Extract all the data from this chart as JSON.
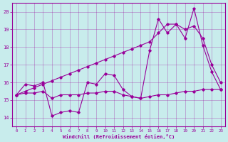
{
  "xlabel": "Windchill (Refroidissement éolien,°C)",
  "bg_color": "#c8ecec",
  "line_color": "#990099",
  "xlim": [
    -0.5,
    23.5
  ],
  "ylim": [
    13.5,
    20.5
  ],
  "xticks": [
    0,
    1,
    2,
    3,
    4,
    5,
    6,
    7,
    8,
    9,
    10,
    11,
    12,
    13,
    14,
    15,
    16,
    17,
    18,
    19,
    20,
    21,
    22,
    23
  ],
  "yticks": [
    14,
    15,
    16,
    17,
    18,
    19,
    20
  ],
  "series1_x": [
    0,
    1,
    2,
    3,
    4,
    5,
    6,
    7,
    8,
    9,
    10,
    11,
    12,
    13,
    14,
    15,
    16,
    17,
    18,
    19,
    20,
    21,
    22,
    23
  ],
  "series1_y": [
    15.3,
    15.5,
    15.7,
    15.9,
    16.1,
    16.3,
    16.5,
    16.7,
    16.9,
    17.1,
    17.3,
    17.5,
    17.7,
    17.9,
    18.1,
    18.3,
    18.8,
    19.3,
    19.3,
    19.0,
    19.2,
    18.5,
    17.0,
    16.0
  ],
  "series2_x": [
    0,
    1,
    2,
    3,
    4,
    5,
    6,
    7,
    8,
    9,
    10,
    11,
    12,
    13,
    14,
    15,
    16,
    17,
    18,
    19,
    20,
    21,
    22,
    23
  ],
  "series2_y": [
    15.3,
    15.9,
    15.8,
    16.0,
    14.1,
    14.3,
    14.4,
    14.3,
    16.0,
    15.9,
    16.5,
    16.4,
    15.6,
    15.2,
    15.1,
    17.8,
    19.6,
    18.8,
    19.3,
    18.5,
    20.2,
    18.1,
    16.6,
    15.6
  ],
  "series3_x": [
    0,
    1,
    2,
    3,
    4,
    5,
    6,
    7,
    8,
    9,
    10,
    11,
    12,
    13,
    14,
    15,
    16,
    17,
    18,
    19,
    20,
    21,
    22,
    23
  ],
  "series3_y": [
    15.3,
    15.4,
    15.4,
    15.5,
    15.1,
    15.3,
    15.3,
    15.3,
    15.4,
    15.4,
    15.5,
    15.5,
    15.3,
    15.2,
    15.1,
    15.2,
    15.3,
    15.3,
    15.4,
    15.5,
    15.5,
    15.6,
    15.6,
    15.6
  ]
}
